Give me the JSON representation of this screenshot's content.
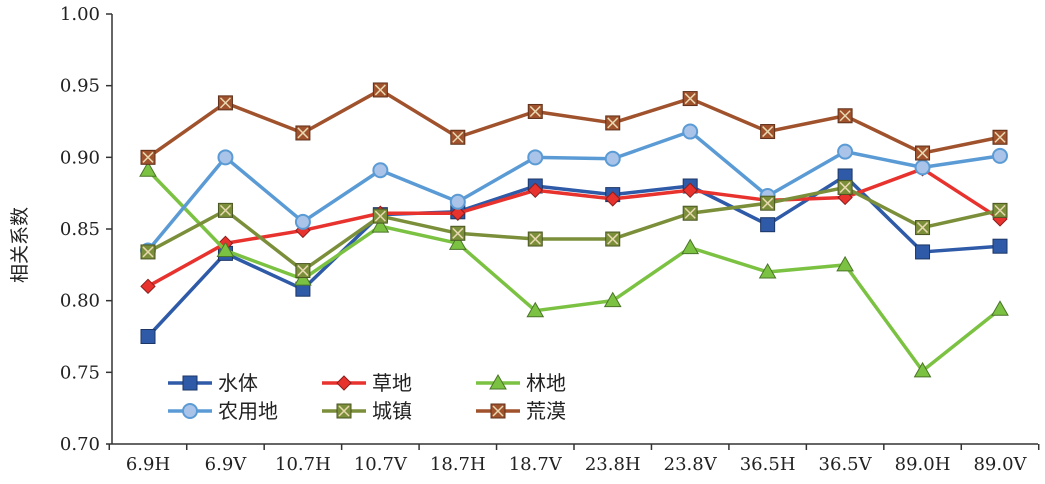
{
  "chart_data": {
    "type": "line",
    "title": "",
    "xlabel": "",
    "ylabel": "相关系数",
    "ylim": [
      0.7,
      1.0
    ],
    "yticks": [
      "0.70",
      "0.75",
      "0.80",
      "0.85",
      "0.90",
      "0.95",
      "1.00"
    ],
    "categories": [
      "6.9H",
      "6.9V",
      "10.7H",
      "10.7V",
      "18.7H",
      "18.7V",
      "23.8H",
      "23.8V",
      "36.5H",
      "36.5V",
      "89.0H",
      "89.0V"
    ],
    "grid": false,
    "legend_position": "bottom-left",
    "series": [
      {
        "name": "水体",
        "marker": "square",
        "color": "#2e5aa8",
        "values": [
          0.775,
          0.833,
          0.808,
          0.86,
          0.862,
          0.88,
          0.874,
          0.88,
          0.853,
          0.887,
          0.834,
          0.838
        ]
      },
      {
        "name": "草地",
        "marker": "diamond",
        "color": "#e8322e",
        "values": [
          0.81,
          0.84,
          0.849,
          0.861,
          0.861,
          0.877,
          0.871,
          0.877,
          0.87,
          0.872,
          0.892,
          0.857
        ]
      },
      {
        "name": "林地",
        "marker": "triangle",
        "color": "#7cc242",
        "values": [
          0.891,
          0.835,
          0.815,
          0.852,
          0.84,
          0.793,
          0.8,
          0.837,
          0.82,
          0.825,
          0.751,
          0.794
        ]
      },
      {
        "name": "农用地",
        "marker": "circle",
        "color": "#5b9bd5",
        "values": [
          0.835,
          0.9,
          0.855,
          0.891,
          0.869,
          0.9,
          0.899,
          0.918,
          0.873,
          0.904,
          0.893,
          0.901
        ]
      },
      {
        "name": "城镇",
        "marker": "square-x",
        "color": "#7b8f3a",
        "values": [
          0.834,
          0.863,
          0.821,
          0.859,
          0.847,
          0.843,
          0.843,
          0.861,
          0.868,
          0.879,
          0.851,
          0.863
        ]
      },
      {
        "name": "荒漠",
        "marker": "square-x",
        "color": "#a0522d",
        "values": [
          0.9,
          0.938,
          0.917,
          0.947,
          0.914,
          0.932,
          0.924,
          0.941,
          0.918,
          0.929,
          0.903,
          0.914
        ]
      }
    ]
  }
}
